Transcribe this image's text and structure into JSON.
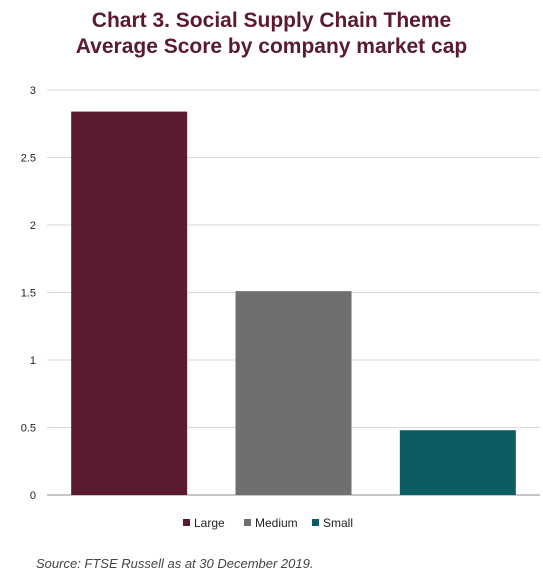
{
  "title_line1": "Chart 3. Social Supply Chain Theme",
  "title_line2": "Average Score by company market cap",
  "source": "Source: FTSE Russell as at 30 December 2019.",
  "colors": {
    "title": "#5a1a32",
    "Large": "#5a1a32",
    "Medium": "#6d6f70",
    "Small": "#0b5d63",
    "grid": "#d9d9d9",
    "axis": "#8c8c8c"
  },
  "chart_data": {
    "type": "bar",
    "title": "Chart 3. Social Supply Chain Theme Average Score by company market cap",
    "categories": [
      "Large",
      "Medium",
      "Small"
    ],
    "values": [
      2.84,
      1.51,
      0.48
    ],
    "ylim": [
      0,
      3
    ],
    "yticks": [
      0,
      0.5,
      1,
      1.5,
      2,
      2.5,
      3
    ],
    "ytick_labels": [
      "0",
      "0.5",
      "1",
      "1.5",
      "2",
      "2.5",
      "3"
    ],
    "grid": true,
    "legend": [
      "Large",
      "Medium",
      "Small"
    ],
    "legend_position": "bottom",
    "xlabel": "",
    "ylabel": ""
  }
}
